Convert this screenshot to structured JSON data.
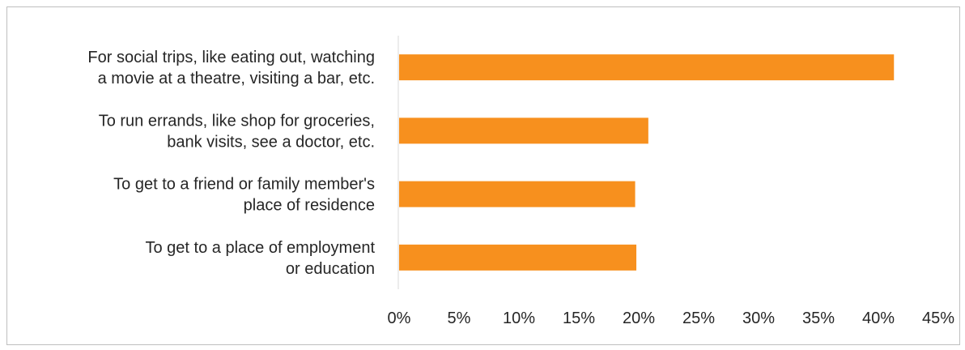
{
  "chart_data": {
    "type": "bar",
    "orientation": "horizontal",
    "categories": [
      [
        "For social trips, like eating out, watching",
        "a movie at a theatre, visiting a bar, etc."
      ],
      [
        "To run errands, like shop for groceries,",
        "bank visits, see a doctor, etc."
      ],
      [
        "To get to a friend or family member's",
        "place of residence"
      ],
      [
        "To get to a place of employment",
        "or education"
      ]
    ],
    "values": [
      41.3,
      20.8,
      19.7,
      19.8
    ],
    "xlim": [
      0,
      45
    ],
    "xticks": [
      "0%",
      "5%",
      "10%",
      "15%",
      "20%",
      "25%",
      "30%",
      "35%",
      "40%",
      "45%"
    ],
    "bar_color": "#F7901E",
    "title": "",
    "xlabel": "",
    "ylabel": "",
    "grid": false,
    "legend": "none"
  }
}
